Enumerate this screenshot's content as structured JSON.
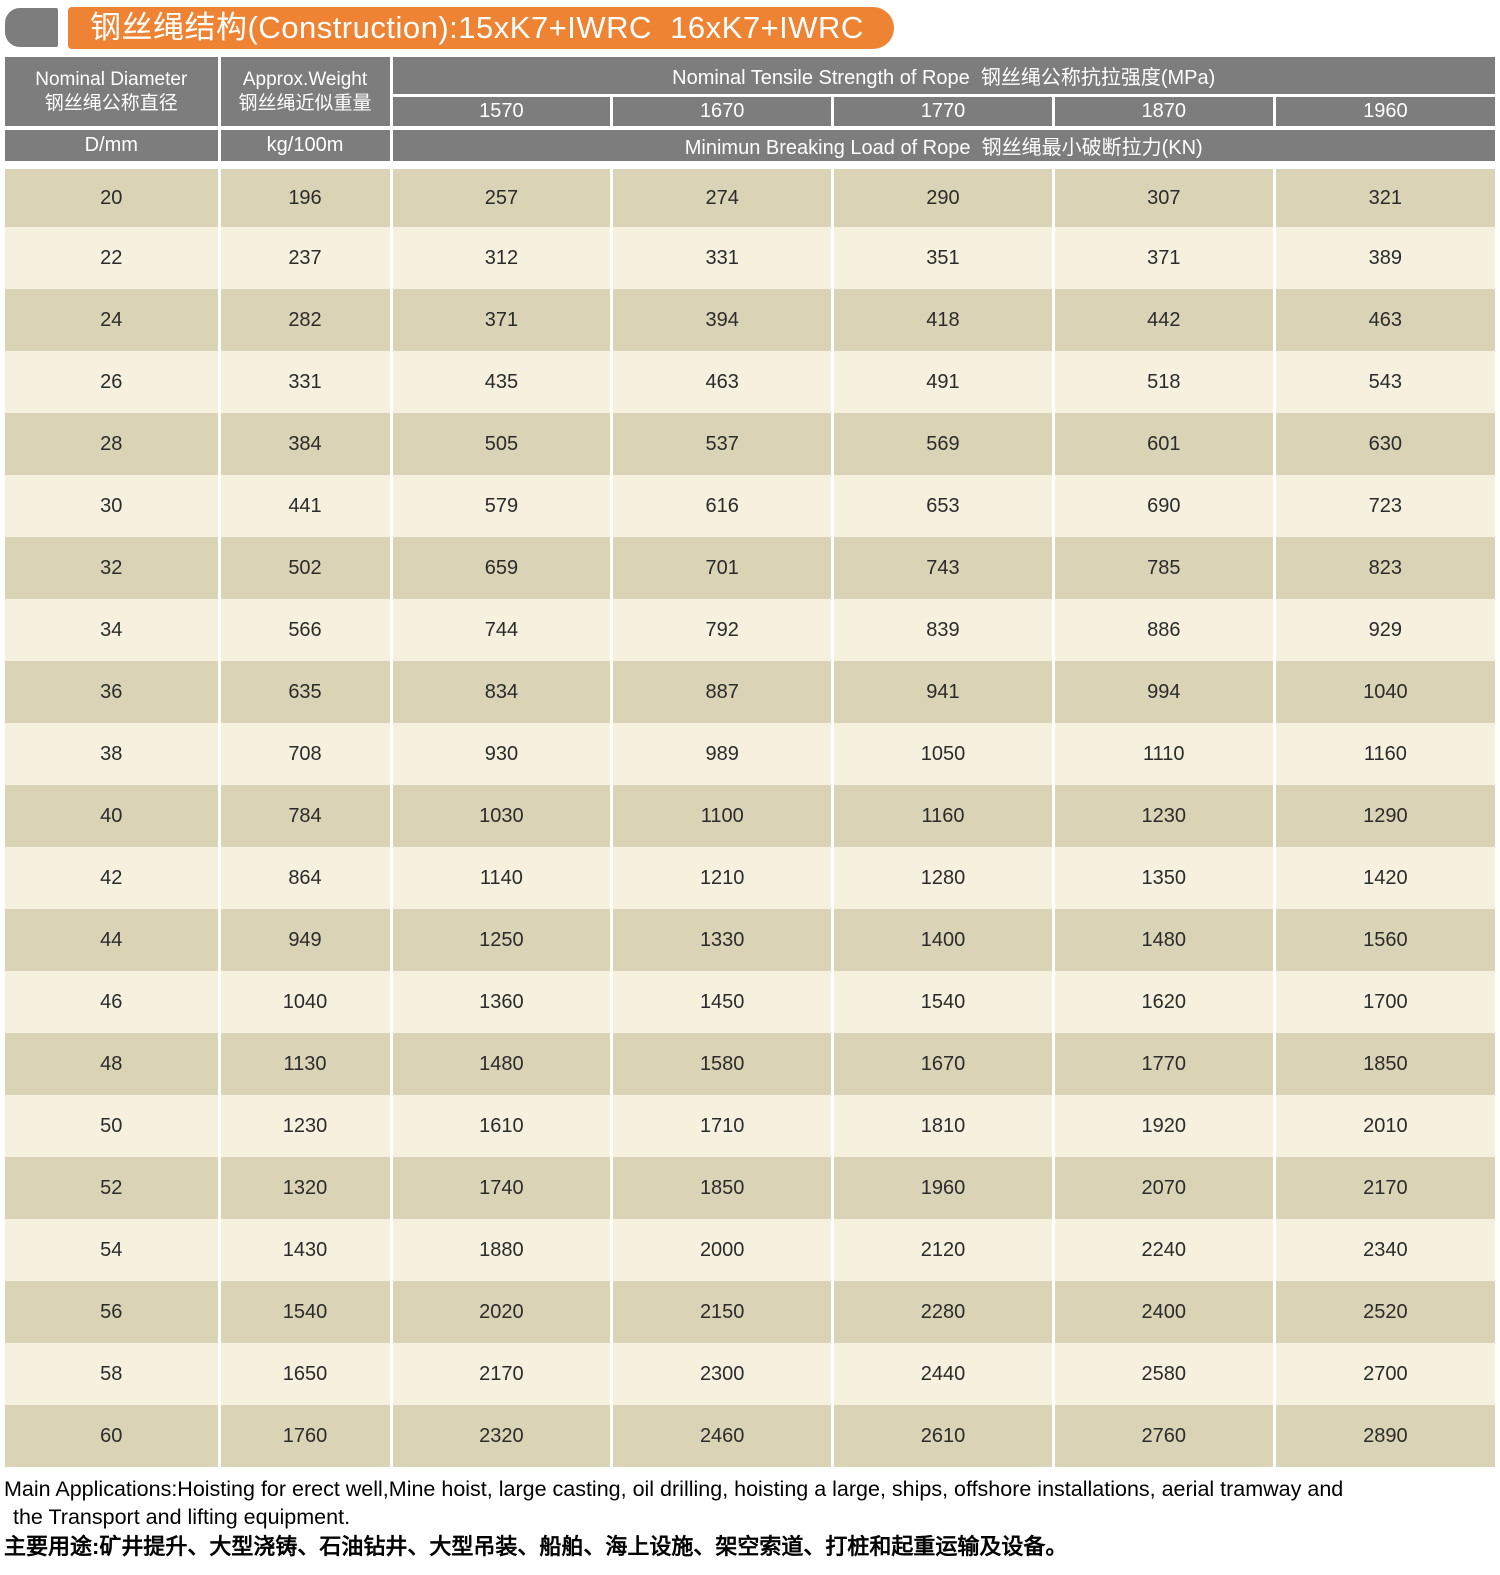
{
  "title": "钢丝绳结构(Construction):15xK7+IWRC  16xK7+IWRC",
  "table": {
    "header": {
      "diameter_en": "Nominal Diameter",
      "diameter_zh": "钢丝绳公称直径",
      "diameter_unit": "D/mm",
      "weight_en": "Approx.Weight",
      "weight_zh": "钢丝绳近似重量",
      "weight_unit": "kg/100m",
      "tensile_title": "Nominal Tensile Strength of Rope  钢丝绳公称抗拉强度(MPa)",
      "strengths": [
        "1570",
        "1670",
        "1770",
        "1870",
        "1960"
      ],
      "breaking_title": "Minimun Breaking Load of Rope  钢丝绳最小破断拉力(KN)"
    },
    "rows": [
      [
        "20",
        "196",
        "257",
        "274",
        "290",
        "307",
        "321"
      ],
      [
        "22",
        "237",
        "312",
        "331",
        "351",
        "371",
        "389"
      ],
      [
        "24",
        "282",
        "371",
        "394",
        "418",
        "442",
        "463"
      ],
      [
        "26",
        "331",
        "435",
        "463",
        "491",
        "518",
        "543"
      ],
      [
        "28",
        "384",
        "505",
        "537",
        "569",
        "601",
        "630"
      ],
      [
        "30",
        "441",
        "579",
        "616",
        "653",
        "690",
        "723"
      ],
      [
        "32",
        "502",
        "659",
        "701",
        "743",
        "785",
        "823"
      ],
      [
        "34",
        "566",
        "744",
        "792",
        "839",
        "886",
        "929"
      ],
      [
        "36",
        "635",
        "834",
        "887",
        "941",
        "994",
        "1040"
      ],
      [
        "38",
        "708",
        "930",
        "989",
        "1050",
        "1110",
        "1160"
      ],
      [
        "40",
        "784",
        "1030",
        "1100",
        "1160",
        "1230",
        "1290"
      ],
      [
        "42",
        "864",
        "1140",
        "1210",
        "1280",
        "1350",
        "1420"
      ],
      [
        "44",
        "949",
        "1250",
        "1330",
        "1400",
        "1480",
        "1560"
      ],
      [
        "46",
        "1040",
        "1360",
        "1450",
        "1540",
        "1620",
        "1700"
      ],
      [
        "48",
        "1130",
        "1480",
        "1580",
        "1670",
        "1770",
        "1850"
      ],
      [
        "50",
        "1230",
        "1610",
        "1710",
        "1810",
        "1920",
        "2010"
      ],
      [
        "52",
        "1320",
        "1740",
        "1850",
        "1960",
        "2070",
        "2170"
      ],
      [
        "54",
        "1430",
        "1880",
        "2000",
        "2120",
        "2240",
        "2340"
      ],
      [
        "56",
        "1540",
        "2020",
        "2150",
        "2280",
        "2400",
        "2520"
      ],
      [
        "58",
        "1650",
        "2170",
        "2300",
        "2440",
        "2580",
        "2700"
      ],
      [
        "60",
        "1760",
        "2320",
        "2460",
        "2610",
        "2760",
        "2890"
      ]
    ]
  },
  "footer": {
    "english_line1": "Main Applications:Hoisting for erect well,Mine hoist, large casting, oil drilling, hoisting a large, ships, offshore installations, aerial tramway and",
    "english_line2": "the Transport and lifting equipment.",
    "chinese": "主要用途:矿井提升、大型浇铸、石油钻井、大型吊装、船舶、海上设施、架空索道、打桩和起重运输及设备。"
  },
  "colors": {
    "banner_orange": "#EE8433",
    "header_gray": "#7D7D7D",
    "row_dark": "#DAD3B5",
    "row_light": "#F5F1DE",
    "separator_white": "#FFFFFF",
    "body_text": "#2B2B2B"
  }
}
